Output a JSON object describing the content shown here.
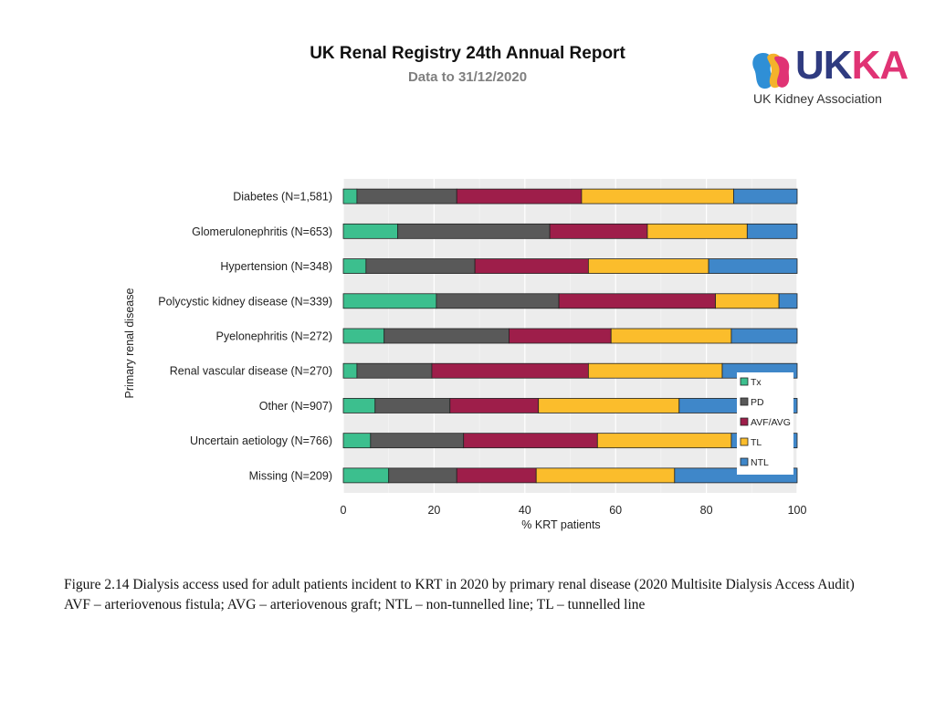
{
  "header": {
    "title": "UK Renal Registry 24th Annual Report",
    "subtitle": "Data to 31/12/2020"
  },
  "logo": {
    "word_main": "UK",
    "word_accent": "KA",
    "tagline": "UK Kidney Association"
  },
  "chart_data": {
    "type": "bar",
    "orientation": "horizontal",
    "stacked": true,
    "categories": [
      "Diabetes (N=1,581)",
      "Glomerulonephritis (N=653)",
      "Hypertension (N=348)",
      "Polycystic kidney disease (N=339)",
      "Pyelonephritis (N=272)",
      "Renal vascular disease (N=270)",
      "Other (N=907)",
      "Uncertain aetiology (N=766)",
      "Missing (N=209)"
    ],
    "series": [
      {
        "name": "Tx",
        "color": "#3cbf8e",
        "values": [
          3,
          12,
          5,
          20.5,
          9,
          3,
          7,
          6,
          10
        ]
      },
      {
        "name": "PD",
        "color": "#595959",
        "values": [
          22,
          33.5,
          24,
          27,
          27.5,
          16.5,
          16.5,
          20.5,
          15
        ]
      },
      {
        "name": "AVF/AVG",
        "color": "#9e1e4a",
        "values": [
          27.5,
          21.5,
          25,
          34.5,
          22.5,
          34.5,
          19.5,
          29.5,
          17.5
        ]
      },
      {
        "name": "TL",
        "color": "#fbbd2c",
        "values": [
          33.5,
          22,
          26.5,
          14,
          26.5,
          29.5,
          31,
          29.5,
          30.5
        ]
      },
      {
        "name": "NTL",
        "color": "#3f87c9",
        "values": [
          14,
          11,
          19.5,
          4,
          14.5,
          16.5,
          26,
          14.5,
          27
        ]
      }
    ],
    "xlabel": "% KRT patients",
    "ylabel": "Primary renal disease",
    "xlim": [
      0,
      100
    ],
    "xticks": [
      "0",
      "20",
      "40",
      "60",
      "80",
      "100"
    ],
    "grid": true,
    "legend_position": "right"
  },
  "caption": {
    "line1": "Figure 2.14 Dialysis access used for adult patients incident to KRT in 2020 by primary renal disease (2020 Multisite Dialysis Access Audit)",
    "line2": "AVF – arteriovenous fistula; AVG – arteriovenous graft; NTL – non-tunnelled line; TL – tunnelled line"
  }
}
